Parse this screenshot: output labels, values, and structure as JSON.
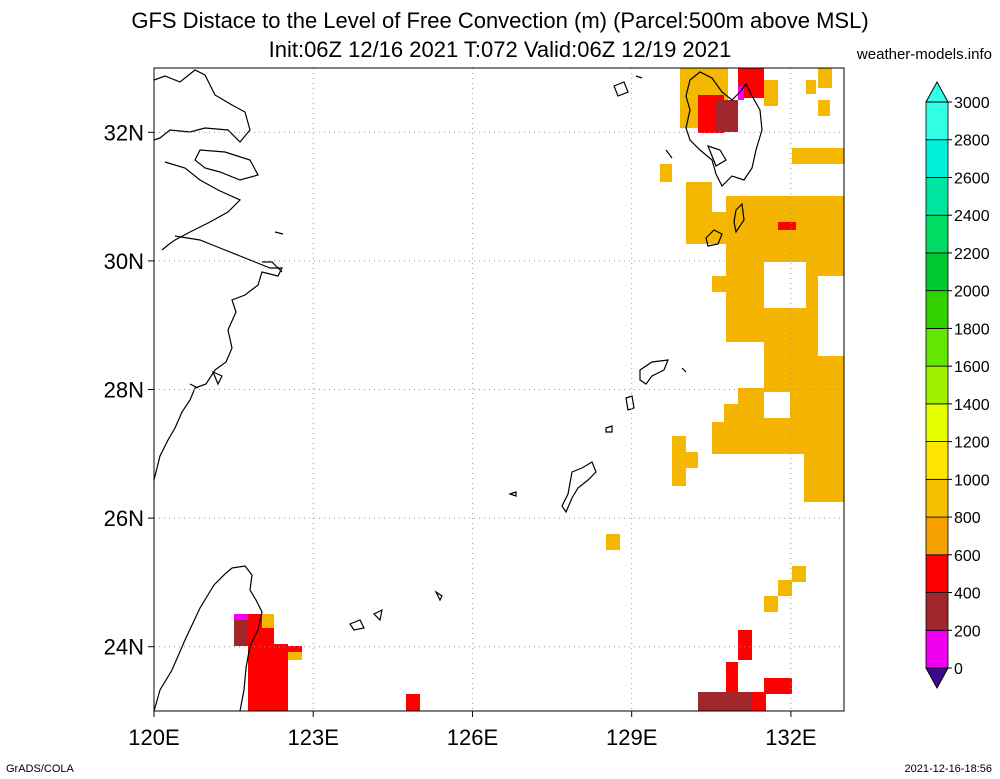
{
  "header": {
    "title_line1": "GFS Distace to the Level of Free Convection (m) (Parcel:500m above MSL)",
    "title_line2": "Init:06Z 12/16 2021 T:072 Valid:06Z 12/19 2021",
    "credit": "weather-models.info"
  },
  "footer": {
    "left": "GrADS/COLA",
    "right": "2021-12-16-18:56"
  },
  "map": {
    "lon_range": [
      120,
      133
    ],
    "lat_range": [
      23,
      33
    ],
    "lon_ticks": [
      "120E",
      "123E",
      "126E",
      "129E",
      "132E"
    ],
    "lat_ticks": [
      "24N",
      "26N",
      "28N",
      "30N",
      "32N"
    ],
    "grid": true,
    "coastline_color": "#000000"
  },
  "colorbar": {
    "labels": [
      "0",
      "200",
      "400",
      "600",
      "800",
      "1000",
      "1200",
      "1400",
      "1600",
      "1800",
      "2000",
      "2200",
      "2400",
      "2600",
      "2800",
      "3000"
    ],
    "colors": [
      "#3c0a8c",
      "#f000f0",
      "#a0282d",
      "#ff0000",
      "#f5a000",
      "#f5c000",
      "#ffe600",
      "#e6ff00",
      "#a0f000",
      "#64e600",
      "#32d200",
      "#00c832",
      "#00dc64",
      "#00e6a0",
      "#00f0dc",
      "#32ffe6"
    ]
  }
}
